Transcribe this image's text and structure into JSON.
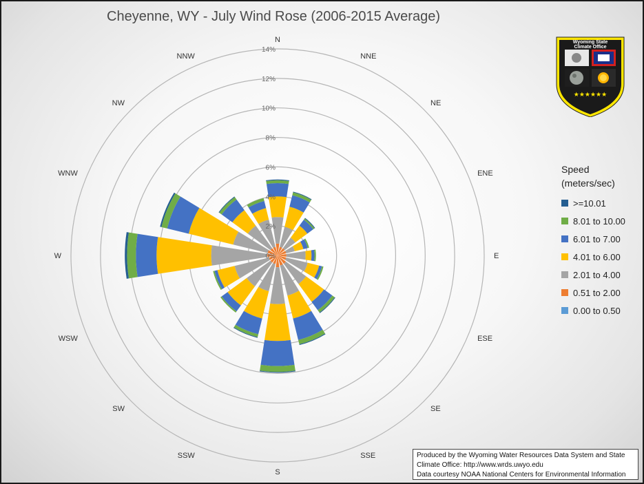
{
  "chart_data": {
    "type": "wind-rose",
    "title": "Cheyenne, WY - July Wind Rose (2006-2015 Average)",
    "radial_axis": {
      "max": 14,
      "ticks": [
        0,
        2,
        4,
        6,
        8,
        10,
        12,
        14
      ],
      "tick_labels": [
        "0%",
        "2%",
        "4%",
        "6%",
        "8%",
        "10%",
        "12%",
        "14%"
      ]
    },
    "directions": [
      "N",
      "NNE",
      "NE",
      "ENE",
      "E",
      "ESE",
      "SE",
      "SSE",
      "S",
      "SSW",
      "SW",
      "WSW",
      "W",
      "WNW",
      "NW",
      "NNW"
    ],
    "legend": {
      "title_line1": "Speed",
      "title_line2": "(meters/sec)",
      "position": "right"
    },
    "series": [
      {
        "name": "0.00 to 0.50",
        "color": "#5b9bd5",
        "values": [
          0,
          0,
          0,
          0,
          0,
          0,
          0,
          0,
          0,
          0,
          0,
          0,
          0,
          0,
          0,
          0
        ]
      },
      {
        "name": "0.51 to 2.00",
        "color": "#ed7d31",
        "values": [
          0.8,
          0.6,
          0.6,
          0.6,
          0.6,
          0.6,
          0.7,
          0.7,
          0.8,
          0.6,
          0.6,
          0.6,
          0.7,
          0.7,
          0.6,
          0.6
        ]
      },
      {
        "name": "2.01 to 4.00",
        "color": "#a5a5a5",
        "values": [
          1.8,
          1.4,
          0.9,
          0.6,
          1.3,
          1.5,
          1.7,
          2.1,
          2.5,
          1.9,
          2.0,
          2.4,
          3.8,
          2.4,
          1.9,
          1.9
        ]
      },
      {
        "name": "4.01 to 6.00",
        "color": "#ffc000",
        "values": [
          1.4,
          1.4,
          1.0,
          0.6,
          0.4,
          0.8,
          1.5,
          1.6,
          2.5,
          1.9,
          1.6,
          1.2,
          3.7,
          3.1,
          1.3,
          0.8
        ]
      },
      {
        "name": "6.01 to 7.00",
        "color": "#4472c4",
        "values": [
          0.9,
          0.8,
          0.5,
          0.3,
          0.2,
          0.2,
          0.7,
          1.5,
          1.7,
          1.1,
          0.5,
          0.2,
          1.4,
          1.5,
          0.9,
          0.5
        ]
      },
      {
        "name": "8.01 to 10.00",
        "color": "#70ad47",
        "values": [
          0.2,
          0.2,
          0.1,
          0.1,
          0.1,
          0.1,
          0.2,
          0.3,
          0.4,
          0.2,
          0.1,
          0.1,
          0.6,
          0.4,
          0.2,
          0.2
        ]
      },
      {
        "name": ">=10.01",
        "color": "#255e91",
        "values": [
          0.05,
          0.05,
          0.05,
          0,
          0,
          0,
          0.05,
          0.05,
          0.05,
          0.05,
          0,
          0,
          0.15,
          0.1,
          0.05,
          0
        ]
      }
    ]
  },
  "logo": {
    "text_line1": "Wyoming State",
    "text_line2": "Climate Office"
  },
  "credit": {
    "line1": "Produced by the Wyoming Water Resources Data System and State",
    "line2": "Climate Office: http://www.wrds.uwyo.edu",
    "line3": "Data courtesy NOAA National Centers for Environmental Information"
  }
}
